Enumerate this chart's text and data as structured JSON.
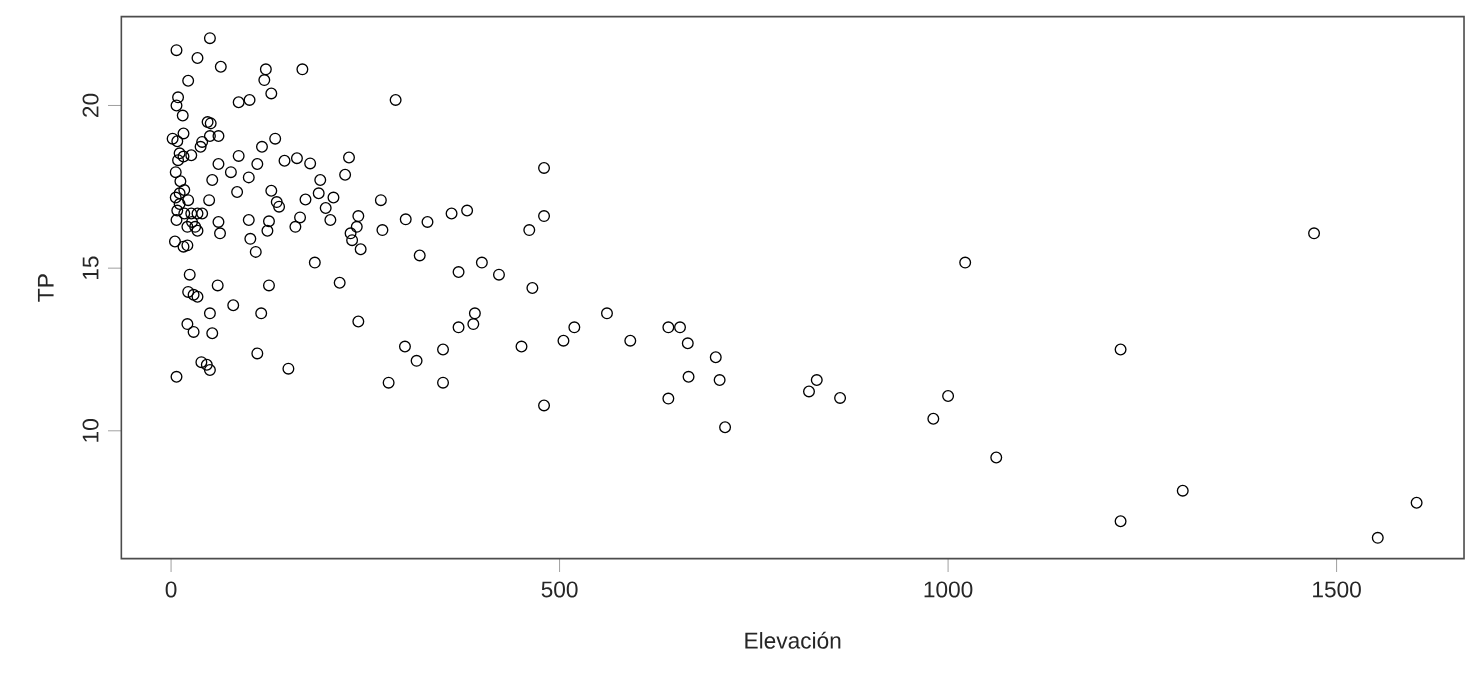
{
  "chart_data": {
    "type": "scatter",
    "xlabel": "Elevación",
    "ylabel": "TP",
    "xlim": [
      -64,
      1664
    ],
    "ylim": [
      6.07,
      22.73
    ],
    "xticks": [
      0,
      500,
      1000,
      1500
    ],
    "yticks": [
      10,
      15,
      20
    ],
    "grid": false,
    "marker": "circle",
    "color": "#000000",
    "x": [
      50,
      7,
      34,
      64,
      122,
      169,
      120,
      22,
      129,
      87,
      101,
      9,
      7,
      15,
      47,
      51,
      2,
      8,
      16,
      40,
      38,
      50,
      61,
      134,
      117,
      11,
      16,
      26,
      9,
      87,
      61,
      111,
      146,
      162,
      179,
      229,
      6,
      53,
      77,
      100,
      224,
      192,
      12,
      11,
      6,
      17,
      85,
      129,
      173,
      190,
      209,
      22,
      11,
      8,
      49,
      136,
      139,
      199,
      17,
      26,
      34,
      7,
      27,
      31,
      40,
      61,
      100,
      126,
      166,
      205,
      241,
      239,
      231,
      233,
      244,
      21,
      34,
      63,
      124,
      160,
      5,
      16,
      21,
      102,
      109,
      185,
      217,
      24,
      22,
      29,
      34,
      60,
      126,
      80,
      50,
      116,
      241,
      21,
      29,
      53,
      111,
      39,
      46,
      50,
      151,
      7,
      289,
      480,
      270,
      302,
      330,
      361,
      381,
      480,
      272,
      461,
      320,
      370,
      400,
      422,
      465,
      391,
      389,
      370,
      561,
      519,
      505,
      591,
      640,
      655,
      665,
      701,
      706,
      666,
      640,
      713,
      301,
      316,
      350,
      280,
      350,
      451,
      480,
      1022,
      1222,
      831,
      821,
      861,
      1000,
      981,
      1062,
      1222,
      1471,
      1302,
      1553,
      1603
    ],
    "values": [
      22.07,
      21.7,
      21.46,
      21.19,
      21.11,
      21.11,
      20.78,
      20.76,
      20.37,
      20.1,
      20.17,
      20.25,
      20.0,
      19.69,
      19.49,
      19.45,
      18.98,
      18.9,
      19.14,
      18.88,
      18.73,
      19.06,
      19.06,
      18.98,
      18.73,
      18.53,
      18.43,
      18.47,
      18.32,
      18.45,
      18.2,
      18.2,
      18.3,
      18.38,
      18.22,
      18.4,
      17.95,
      17.71,
      17.95,
      17.79,
      17.87,
      17.71,
      17.67,
      17.3,
      17.17,
      17.4,
      17.34,
      17.38,
      17.11,
      17.3,
      17.17,
      17.09,
      16.97,
      16.77,
      17.09,
      17.03,
      16.89,
      16.85,
      16.68,
      16.68,
      16.68,
      16.48,
      16.42,
      16.27,
      16.68,
      16.42,
      16.48,
      16.44,
      16.56,
      16.48,
      16.6,
      16.27,
      16.07,
      15.86,
      15.58,
      16.27,
      16.15,
      16.07,
      16.15,
      16.27,
      15.82,
      15.66,
      15.7,
      15.9,
      15.5,
      15.17,
      14.55,
      14.8,
      14.27,
      14.18,
      14.12,
      14.47,
      14.47,
      13.86,
      13.61,
      13.61,
      13.36,
      13.28,
      13.04,
      13.0,
      12.38,
      12.11,
      12.03,
      11.87,
      11.91,
      11.66,
      20.17,
      18.08,
      17.09,
      16.5,
      16.42,
      16.68,
      16.77,
      16.6,
      16.17,
      16.17,
      15.39,
      14.88,
      15.17,
      14.8,
      14.39,
      13.61,
      13.28,
      13.18,
      13.61,
      13.18,
      12.77,
      12.77,
      13.18,
      13.18,
      12.69,
      12.26,
      11.56,
      11.66,
      10.99,
      10.11,
      12.59,
      12.15,
      12.5,
      11.48,
      11.48,
      12.59,
      10.78,
      15.17,
      12.5,
      11.56,
      11.21,
      11.01,
      11.07,
      10.37,
      9.18,
      7.22,
      16.07,
      8.16,
      6.71,
      7.79
    ]
  }
}
